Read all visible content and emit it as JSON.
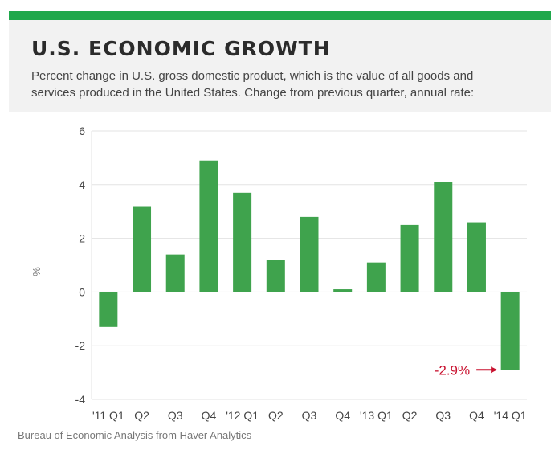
{
  "header": {
    "title": "U.S. ECONOMIC GROWTH",
    "subtitle": "Percent change in U.S. gross domestic product, which is the value of all goods and services produced in the United States. Change from previous quarter, annual rate:"
  },
  "source": "Bureau of Economic Analysis from Haver Analytics",
  "colors": {
    "accent": "#1fa84b",
    "bar": "#3fa34d",
    "annotation": "#c8102e",
    "grid": "#e3e3e3"
  },
  "chart_data": {
    "type": "bar",
    "categories": [
      "'11 Q1",
      "Q2",
      "Q3",
      "Q4",
      "'12 Q1",
      "Q2",
      "Q3",
      "Q4",
      "'13 Q1",
      "Q2",
      "Q3",
      "Q4",
      "'14 Q1"
    ],
    "values": [
      -1.3,
      3.2,
      1.4,
      4.9,
      3.7,
      1.2,
      2.8,
      0.1,
      1.1,
      2.5,
      4.1,
      2.6,
      -2.9
    ],
    "ylabel": "%",
    "ylim": [
      -4,
      6
    ],
    "yticks": [
      6,
      4,
      2,
      0,
      -2,
      -4
    ],
    "grid": true,
    "annotation": {
      "text": "-2.9%",
      "category": "'14 Q1",
      "value": -2.9,
      "color": "#c8102e"
    }
  }
}
